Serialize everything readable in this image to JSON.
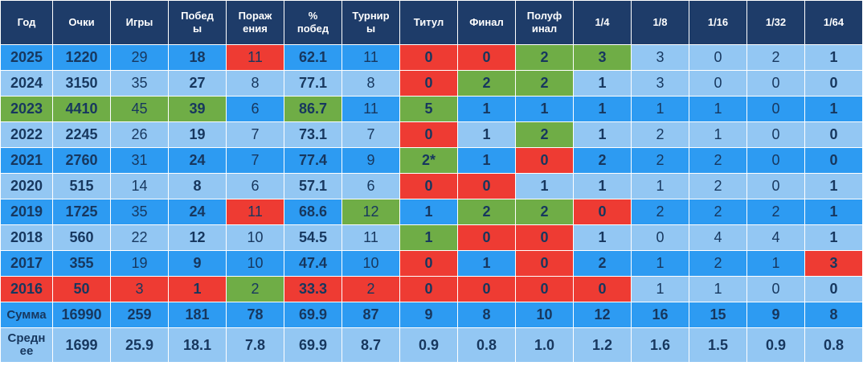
{
  "colors": {
    "header_bg": "#1E3C69",
    "header_text": "#FFFFFF",
    "bright": "#2D9BF2",
    "light": "#93C7F3",
    "red": "#EE3B33",
    "green": "#6FAD46",
    "text": "#17375E",
    "grid": "#FFFFFF"
  },
  "chart_data": {
    "type": "table",
    "columns": [
      "Год",
      "Очки",
      "Игры",
      "Побед\nы",
      "Пораж\nения",
      "%\nпобед",
      "Турнир\nы",
      "Титул",
      "Финал",
      "Полуф\nинал",
      "1/4",
      "1/8",
      "1/16",
      "1/32",
      "1/64"
    ],
    "bold_columns": [
      0,
      1,
      3,
      5,
      7,
      8,
      9,
      10,
      14
    ],
    "rows": [
      {
        "base": "bright",
        "cells": [
          "2025",
          "1220",
          "29",
          "18",
          "11",
          "62.1",
          "11",
          "0",
          "0",
          "2",
          "3",
          "3",
          "0",
          "2",
          "1"
        ],
        "cell_colors": {
          "4": "red",
          "7": "red",
          "8": "red",
          "9": "green",
          "10": "green",
          "11": "light",
          "12": "light",
          "13": "light",
          "14": "light"
        }
      },
      {
        "base": "light",
        "cells": [
          "2024",
          "3150",
          "35",
          "27",
          "8",
          "77.1",
          "8",
          "0",
          "2",
          "2",
          "1",
          "3",
          "0",
          "0",
          "0"
        ],
        "cell_colors": {
          "7": "red",
          "8": "green",
          "9": "green"
        }
      },
      {
        "base": "bright",
        "cells": [
          "2023",
          "4410",
          "45",
          "39",
          "6",
          "86.7",
          "11",
          "5",
          "1",
          "1",
          "1",
          "1",
          "1",
          "0",
          "1"
        ],
        "cell_colors": {
          "0": "green",
          "1": "green",
          "2": "green",
          "3": "green",
          "5": "green",
          "7": "green"
        }
      },
      {
        "base": "light",
        "cells": [
          "2022",
          "2245",
          "26",
          "19",
          "7",
          "73.1",
          "7",
          "0",
          "1",
          "2",
          "1",
          "2",
          "1",
          "0",
          "0"
        ],
        "cell_colors": {
          "7": "red",
          "9": "green"
        }
      },
      {
        "base": "bright",
        "cells": [
          "2021",
          "2760",
          "31",
          "24",
          "7",
          "77.4",
          "9",
          "2*",
          "1",
          "0",
          "2",
          "2",
          "2",
          "0",
          "0"
        ],
        "cell_colors": {
          "7": "green",
          "9": "red"
        }
      },
      {
        "base": "light",
        "cells": [
          "2020",
          "515",
          "14",
          "8",
          "6",
          "57.1",
          "6",
          "0",
          "0",
          "1",
          "1",
          "1",
          "2",
          "0",
          "1"
        ],
        "cell_colors": {
          "7": "red",
          "8": "red"
        }
      },
      {
        "base": "bright",
        "cells": [
          "2019",
          "1725",
          "35",
          "24",
          "11",
          "68.6",
          "12",
          "1",
          "2",
          "2",
          "0",
          "2",
          "2",
          "2",
          "1"
        ],
        "cell_colors": {
          "4": "red",
          "6": "green",
          "8": "green",
          "9": "green",
          "10": "red"
        }
      },
      {
        "base": "light",
        "cells": [
          "2018",
          "560",
          "22",
          "12",
          "10",
          "54.5",
          "11",
          "1",
          "0",
          "0",
          "1",
          "0",
          "4",
          "4",
          "1"
        ],
        "cell_colors": {
          "7": "green",
          "8": "red",
          "9": "red"
        }
      },
      {
        "base": "bright",
        "cells": [
          "2017",
          "355",
          "19",
          "9",
          "10",
          "47.4",
          "10",
          "0",
          "1",
          "0",
          "2",
          "1",
          "2",
          "1",
          "3"
        ],
        "cell_colors": {
          "7": "red",
          "9": "red",
          "14": "red"
        }
      },
      {
        "base": "light",
        "cells": [
          "2016",
          "50",
          "3",
          "1",
          "2",
          "33.3",
          "2",
          "0",
          "0",
          "0",
          "0",
          "1",
          "1",
          "0",
          "0"
        ],
        "cell_colors": {
          "0": "red",
          "1": "red",
          "2": "red",
          "3": "red",
          "4": "green",
          "5": "red",
          "6": "red",
          "7": "red",
          "8": "red",
          "9": "red",
          "10": "red"
        }
      },
      {
        "base": "bright",
        "bold_all": true,
        "cells": [
          "Сумма",
          "16990",
          "259",
          "181",
          "78",
          "69.9",
          "87",
          "9",
          "8",
          "10",
          "12",
          "16",
          "15",
          "9",
          "8"
        ],
        "cell_colors": {}
      },
      {
        "base": "light",
        "bold_all": true,
        "tall": true,
        "cells": [
          "Средн\nее",
          "1699",
          "25.9",
          "18.1",
          "7.8",
          "69.9",
          "8.7",
          "0.9",
          "0.8",
          "1.0",
          "1.2",
          "1.6",
          "1.5",
          "0.9",
          "0.8"
        ],
        "cell_colors": {}
      }
    ]
  }
}
